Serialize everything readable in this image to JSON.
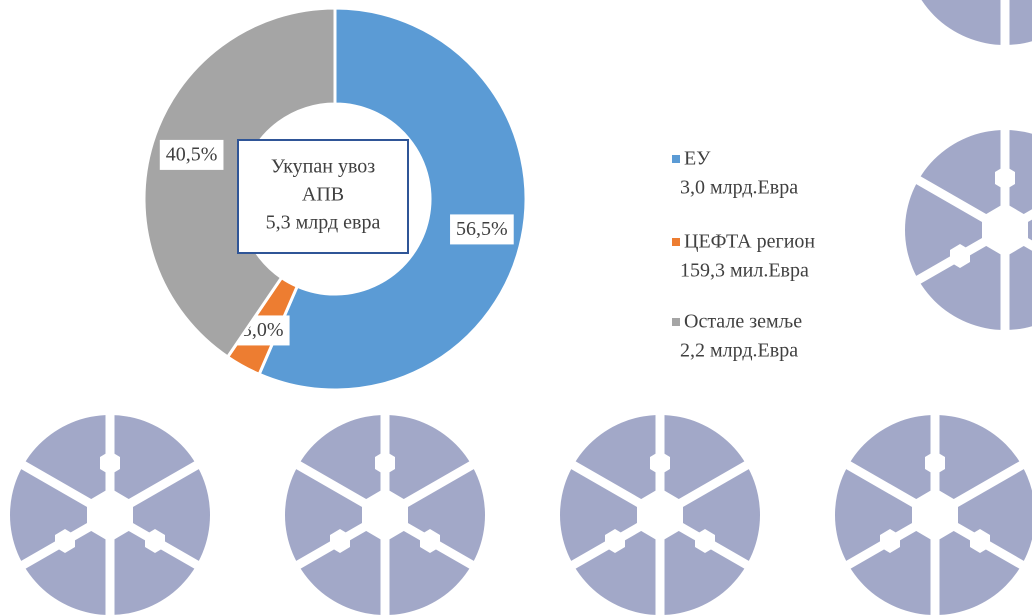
{
  "chart_data": {
    "type": "pie",
    "donut": true,
    "categories": [
      "ЕУ",
      "ЦЕФТА регион",
      "Остале земље"
    ],
    "legend_details": [
      "3,0  млрд.Евра",
      "159,3 мил.Евра",
      "2,2 млрд.Евра"
    ],
    "values": [
      56.5,
      3.0,
      40.5
    ],
    "value_labels": [
      "56,5%",
      "3,0%",
      "40,5%"
    ],
    "colors": [
      "#5b9bd5",
      "#ed7d31",
      "#a5a5a5"
    ],
    "center_label": [
      "Укупан увоз",
      "АПВ",
      "5,3 млрд евра"
    ],
    "legend": "right"
  }
}
